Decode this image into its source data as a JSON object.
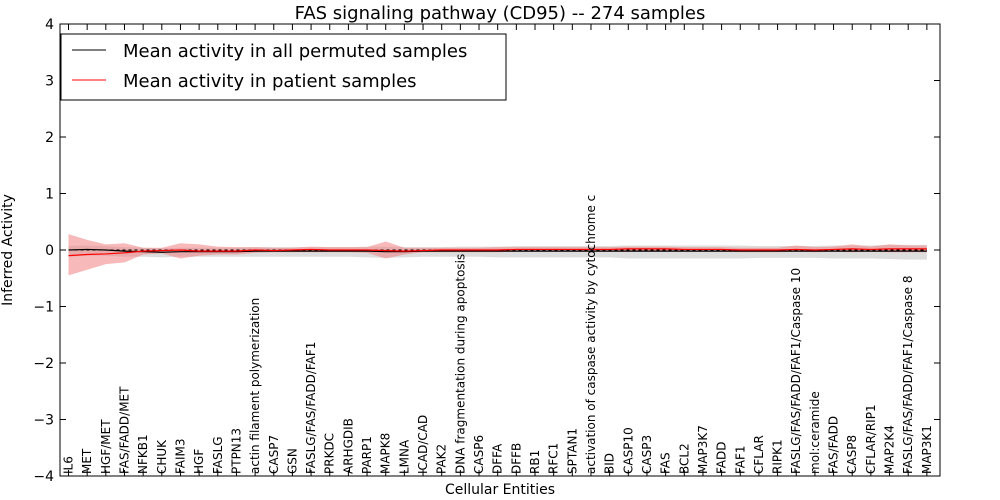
{
  "chart_data": {
    "type": "line",
    "title": "FAS signaling pathway (CD95) -- 274 samples",
    "xlabel": "Cellular Entities",
    "ylabel": "Inferred Activity",
    "ylim": [
      -4,
      4
    ],
    "yticks": [
      4,
      3,
      2,
      1,
      0,
      -1,
      -2,
      -3,
      -4
    ],
    "ytick_labels": [
      "4",
      "3",
      "2",
      "1",
      "0",
      "−1",
      "−2",
      "−3",
      "−4"
    ],
    "grid": false,
    "legend_position": "top-left",
    "categories": [
      "IL6",
      "MET",
      "HGF/MET",
      "FAS/FADD/MET",
      "NFKB1",
      "CHUK",
      "FAIM3",
      "HGF",
      "FASLG",
      "PTPN13",
      "actin filament polymerization",
      "CASP7",
      "GSN",
      "FASLG/FAS/FADD/FAF1",
      "PRKDC",
      "ARHGDIB",
      "PARP1",
      "MAPK8",
      "LMNA",
      "ICAD/CAD",
      "PAK2",
      "DNA fragmentation during apoptosis",
      "CASP6",
      "DFFA",
      "DFFB",
      "RB1",
      "RFC1",
      "SPTAN1",
      "activation of caspase activity by cytochrome c",
      "BID",
      "CASP10",
      "CASP3",
      "FAS",
      "BCL2",
      "MAP3K7",
      "FADD",
      "FAF1",
      "CFLAR",
      "RIPK1",
      "FASLG/FAS/FADD/FAF1/Caspase 10",
      "mol:ceramide",
      "FAS/FADD",
      "CASP8",
      "CFLAR/RIP1",
      "MAP2K4",
      "FASLG/FAS/FADD/FAF1/Caspase 8",
      "MAP3K1"
    ],
    "series": [
      {
        "name": "Mean activity in all permuted samples",
        "color": "#000000",
        "band_color": "#b4b4b4",
        "values": [
          0.0,
          0.01,
          0.0,
          -0.02,
          -0.03,
          -0.04,
          -0.03,
          -0.03,
          -0.03,
          -0.03,
          -0.02,
          -0.02,
          -0.02,
          -0.02,
          -0.02,
          -0.02,
          -0.02,
          -0.03,
          -0.03,
          -0.02,
          -0.02,
          -0.02,
          -0.02,
          -0.02,
          -0.02,
          -0.02,
          -0.02,
          -0.02,
          -0.02,
          -0.02,
          -0.02,
          -0.02,
          -0.02,
          -0.02,
          -0.02,
          -0.02,
          -0.02,
          -0.02,
          -0.02,
          -0.02,
          -0.02,
          -0.02,
          -0.02,
          -0.02,
          -0.02,
          -0.02,
          -0.02
        ],
        "band_lower": [
          -0.12,
          -0.1,
          -0.1,
          -0.12,
          -0.12,
          -0.13,
          -0.12,
          -0.12,
          -0.12,
          -0.12,
          -0.12,
          -0.12,
          -0.12,
          -0.12,
          -0.12,
          -0.12,
          -0.13,
          -0.14,
          -0.13,
          -0.12,
          -0.12,
          -0.12,
          -0.12,
          -0.13,
          -0.13,
          -0.13,
          -0.13,
          -0.13,
          -0.13,
          -0.13,
          -0.15,
          -0.15,
          -0.15,
          -0.15,
          -0.15,
          -0.15,
          -0.15,
          -0.14,
          -0.14,
          -0.14,
          -0.14,
          -0.15,
          -0.15,
          -0.15,
          -0.16,
          -0.17,
          -0.17
        ],
        "band_upper": [
          0.07,
          0.08,
          0.07,
          0.05,
          0.04,
          0.03,
          0.04,
          0.04,
          0.04,
          0.04,
          0.05,
          0.05,
          0.05,
          0.05,
          0.05,
          0.05,
          0.06,
          0.06,
          0.05,
          0.05,
          0.05,
          0.06,
          0.06,
          0.06,
          0.07,
          0.07,
          0.07,
          0.07,
          0.07,
          0.07,
          0.08,
          0.08,
          0.08,
          0.08,
          0.08,
          0.08,
          0.08,
          0.07,
          0.07,
          0.07,
          0.07,
          0.08,
          0.08,
          0.08,
          0.09,
          0.09,
          0.09
        ]
      },
      {
        "name": "Mean activity in patient samples",
        "color": "#ff0000",
        "band_color": "#f08080",
        "values": [
          -0.1,
          -0.08,
          -0.07,
          -0.05,
          -0.02,
          -0.01,
          0.0,
          -0.02,
          -0.02,
          -0.02,
          0.0,
          -0.01,
          0.0,
          0.01,
          0.0,
          0.0,
          0.0,
          -0.01,
          -0.02,
          -0.01,
          0.0,
          0.0,
          0.0,
          0.0,
          0.01,
          0.01,
          0.01,
          0.01,
          0.01,
          0.01,
          0.02,
          0.02,
          0.02,
          0.01,
          0.01,
          0.01,
          0.0,
          0.0,
          0.0,
          0.01,
          0.0,
          0.01,
          0.02,
          0.01,
          0.02,
          0.02,
          0.02
        ],
        "band_lower": [
          -0.45,
          -0.35,
          -0.25,
          -0.22,
          -0.08,
          -0.06,
          -0.15,
          -0.1,
          -0.08,
          -0.08,
          -0.05,
          -0.04,
          -0.04,
          -0.04,
          -0.04,
          -0.04,
          -0.05,
          -0.15,
          -0.08,
          -0.04,
          -0.04,
          -0.04,
          -0.04,
          -0.04,
          -0.03,
          -0.03,
          -0.03,
          -0.03,
          -0.03,
          -0.03,
          -0.03,
          -0.03,
          -0.03,
          -0.03,
          -0.03,
          -0.03,
          -0.04,
          -0.04,
          -0.04,
          -0.03,
          -0.04,
          -0.03,
          -0.04,
          -0.03,
          -0.04,
          -0.04,
          -0.04
        ],
        "band_upper": [
          0.28,
          0.18,
          0.1,
          0.12,
          0.04,
          0.04,
          0.12,
          0.1,
          0.06,
          0.05,
          0.05,
          0.04,
          0.04,
          0.06,
          0.05,
          0.05,
          0.05,
          0.15,
          0.04,
          0.04,
          0.04,
          0.04,
          0.04,
          0.05,
          0.05,
          0.05,
          0.05,
          0.05,
          0.05,
          0.05,
          0.06,
          0.06,
          0.06,
          0.05,
          0.05,
          0.05,
          0.04,
          0.04,
          0.04,
          0.08,
          0.05,
          0.06,
          0.1,
          0.06,
          0.1,
          0.08,
          0.08
        ]
      }
    ],
    "reference_line": {
      "y": 0,
      "style": "dashed",
      "color": "#000000"
    }
  }
}
